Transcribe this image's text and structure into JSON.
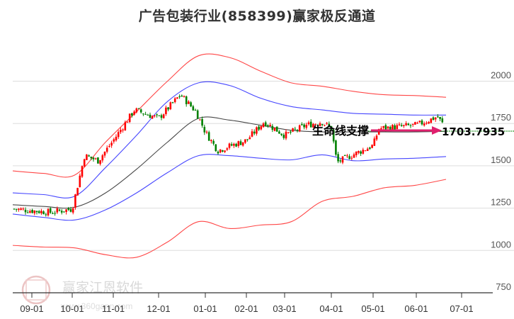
{
  "title": "广告包装行业(858399)赢家极反通道",
  "watermark": {
    "brand": "赢家江恩软件",
    "url": "www.360gann.com",
    "logo_chars": [
      "江",
      "赢",
      "恩",
      "家"
    ]
  },
  "annotation": {
    "label": "生命线支撑",
    "value": "1703.7935"
  },
  "colors": {
    "up": "#ff0000",
    "down": "#008000",
    "outer_band": "#ff3333",
    "inner_band": "#3333ff",
    "midline": "#333333",
    "arrow": "#e0206e",
    "support_line": "#008000",
    "grid": "#dddddd"
  },
  "chart_data": {
    "type": "candlestick+bands",
    "title": "广告包装行业(858399)赢家极反通道",
    "xlabel": "",
    "ylabel": "",
    "ylim": [
      750,
      2100
    ],
    "yticks": [
      750,
      1000,
      1250,
      1500,
      1750,
      2000
    ],
    "xticks": [
      "09-01",
      "10-01",
      "11-01",
      "12-01",
      "01-01",
      "02-01",
      "03-01",
      "04-01",
      "05-01",
      "06-01",
      "07-01"
    ],
    "grid": true,
    "support_level": 1703.7935,
    "annotation_text": "生命线支撑",
    "price_approx": [
      {
        "x": "09-01",
        "close": 1245
      },
      {
        "x": "09-15",
        "close": 1225
      },
      {
        "x": "10-01",
        "close": 1245
      },
      {
        "x": "10-10",
        "close": 1560
      },
      {
        "x": "10-20",
        "close": 1530
      },
      {
        "x": "11-01",
        "close": 1650
      },
      {
        "x": "11-15",
        "close": 1830
      },
      {
        "x": "12-01",
        "close": 1780
      },
      {
        "x": "12-15",
        "close": 1920
      },
      {
        "x": "12-25",
        "close": 1820
      },
      {
        "x": "01-01",
        "close": 1700
      },
      {
        "x": "01-10",
        "close": 1590
      },
      {
        "x": "01-20",
        "close": 1620
      },
      {
        "x": "02-01",
        "close": 1650
      },
      {
        "x": "02-15",
        "close": 1760
      },
      {
        "x": "03-01",
        "close": 1680
      },
      {
        "x": "03-15",
        "close": 1740
      },
      {
        "x": "03-25",
        "close": 1760
      },
      {
        "x": "04-01",
        "close": 1720
      },
      {
        "x": "04-05",
        "close": 1520
      },
      {
        "x": "04-15",
        "close": 1560
      },
      {
        "x": "05-01",
        "close": 1620
      },
      {
        "x": "05-05",
        "close": 1720
      },
      {
        "x": "06-01",
        "close": 1740
      },
      {
        "x": "06-15",
        "close": 1790
      },
      {
        "x": "06-22",
        "close": 1704
      }
    ],
    "series": [
      {
        "name": "outer_upper",
        "color": "#ff3333",
        "values_approx": [
          1470,
          1455,
          1445,
          1640,
          1820,
          2000,
          2150,
          2140,
          2060,
          1990,
          1970,
          1940,
          1920,
          1915,
          1905
        ]
      },
      {
        "name": "inner_upper",
        "color": "#3333ff",
        "values_approx": [
          1340,
          1330,
          1320,
          1490,
          1680,
          1880,
          1990,
          1975,
          1900,
          1850,
          1830,
          1810,
          1805,
          1800,
          1800
        ]
      },
      {
        "name": "midline",
        "color": "#333333",
        "values_approx": [
          1270,
          1260,
          1255,
          1340,
          1480,
          1640,
          1780,
          1770,
          1740,
          1710,
          1700,
          1700,
          1700,
          1700,
          1704
        ]
      },
      {
        "name": "inner_lower",
        "color": "#3333ff",
        "values_approx": [
          1215,
          1195,
          1180,
          1240,
          1340,
          1460,
          1560,
          1560,
          1545,
          1535,
          1565,
          1530,
          1540,
          1545,
          1555
        ]
      },
      {
        "name": "outer_lower",
        "color": "#ff3333",
        "values_approx": [
          1030,
          1020,
          1015,
          975,
          960,
          1050,
          1170,
          1130,
          1150,
          1170,
          1290,
          1320,
          1370,
          1385,
          1420
        ]
      }
    ]
  }
}
